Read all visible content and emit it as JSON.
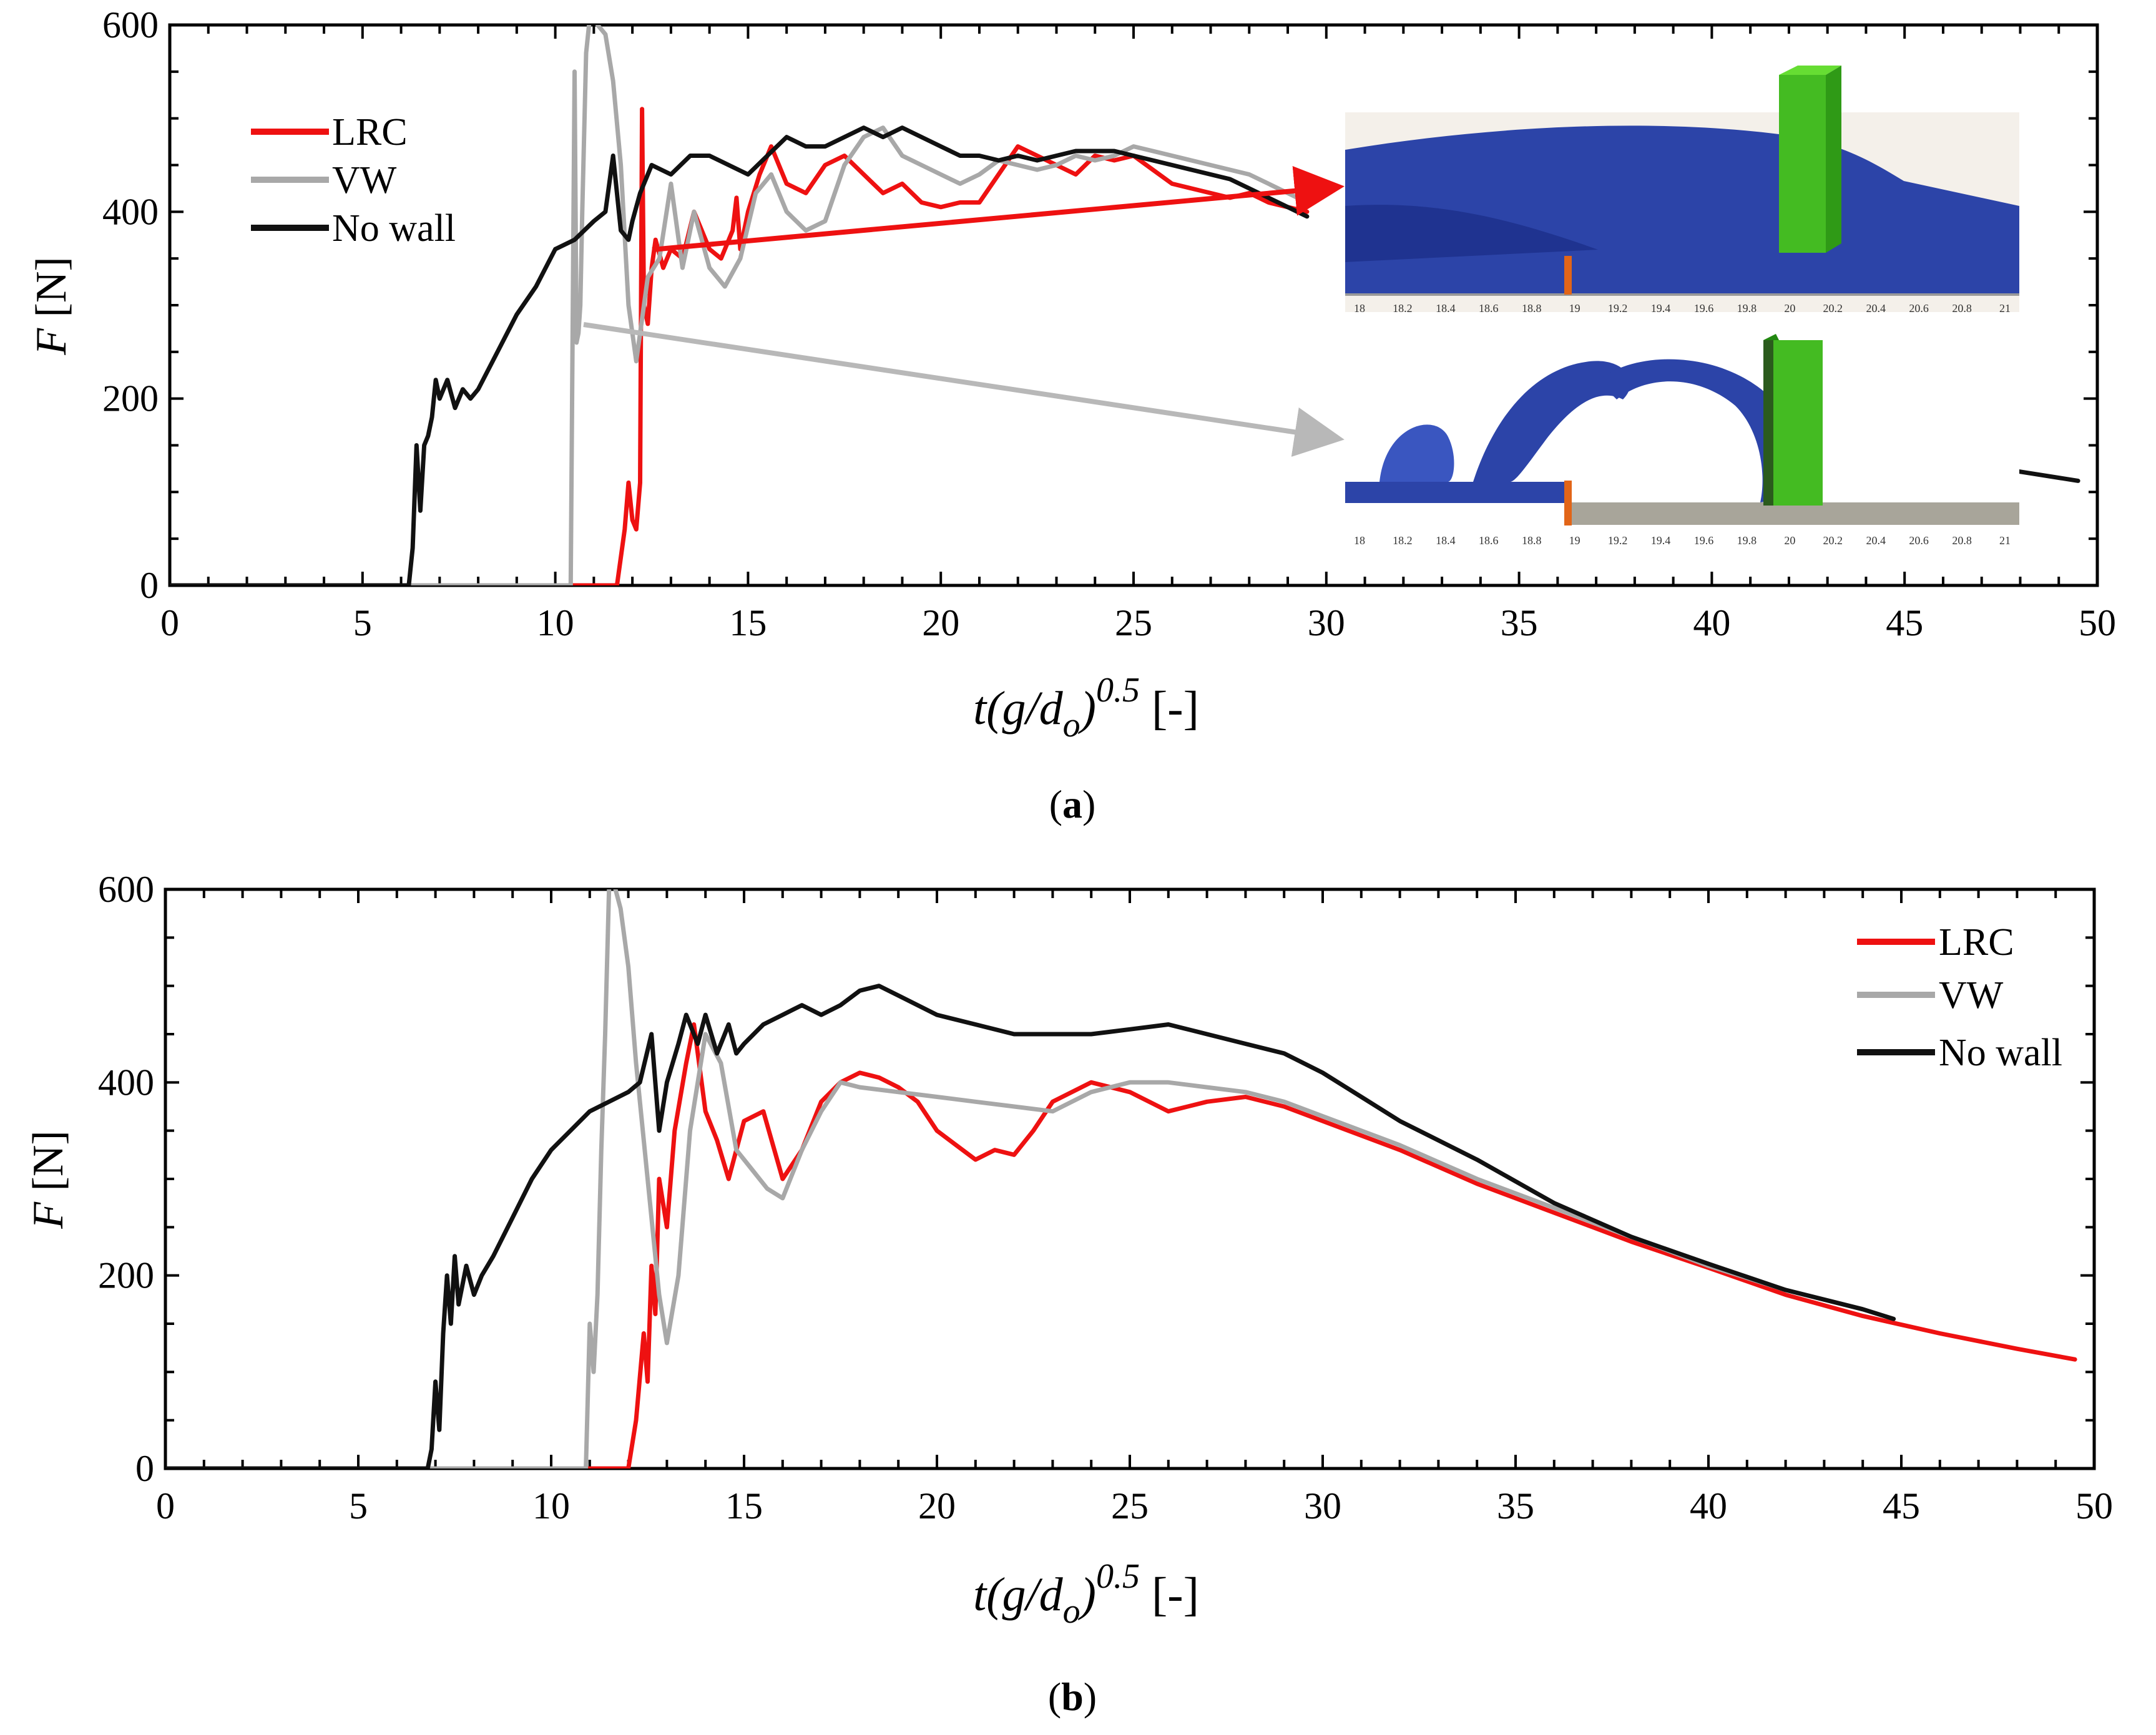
{
  "figure": {
    "captions": [
      "(a)",
      "(b)"
    ],
    "caption_letters": [
      "a",
      "b"
    ]
  },
  "colors": {
    "LRC": "#ee1111",
    "VW": "#a8a8a8",
    "No wall": "#111111",
    "arrow_LRC": "#ee1111",
    "arrow_VW": "#b8b8b8",
    "wave": "#2c44a8",
    "wall": "#44bb22"
  },
  "chart_data": [
    {
      "panel": "a",
      "type": "line",
      "title": "",
      "xlabel": "t(g/d_o)^0.5 [-]",
      "xlabel_parts": {
        "main": "t(g/d",
        "sub": "o",
        "close": ")",
        "sup": "0.5",
        "unit": " [-]"
      },
      "ylabel": "F [N]",
      "ylabel_parts": {
        "var": "F",
        "unit": " [N]"
      },
      "xlim": [
        0,
        50
      ],
      "ylim": [
        0,
        600
      ],
      "xticks": [
        0,
        5,
        10,
        15,
        20,
        25,
        30,
        35,
        40,
        45,
        50
      ],
      "yticks": [
        0,
        200,
        400,
        600
      ],
      "legend": {
        "placement": "top-left",
        "entries": [
          "LRC",
          "VW",
          "No wall"
        ]
      },
      "series": [
        {
          "name": "LRC",
          "x": [
            0,
            10,
            11.6,
            11.8,
            11.9,
            12.0,
            12.1,
            12.2,
            12.25,
            12.3,
            12.4,
            12.5,
            12.6,
            12.8,
            13.0,
            13.3,
            13.6,
            14.0,
            14.3,
            14.6,
            14.7,
            14.8,
            15.0,
            15.3,
            15.6,
            16.0,
            16.5,
            17.0,
            17.5,
            18.0,
            18.5,
            19.0,
            19.5,
            20.0,
            20.5,
            21.0,
            21.5,
            22.0,
            22.5,
            23.0,
            23.5,
            24.0,
            24.5,
            25.0,
            25.5,
            26.0,
            26.5,
            27.0,
            27.5,
            28.0,
            28.5,
            29.0,
            29.5
          ],
          "y": [
            0,
            0,
            0,
            60,
            110,
            70,
            60,
            110,
            510,
            300,
            280,
            340,
            370,
            340,
            360,
            350,
            400,
            360,
            350,
            380,
            415,
            360,
            400,
            440,
            470,
            430,
            420,
            450,
            460,
            440,
            420,
            430,
            410,
            405,
            410,
            410,
            440,
            470,
            460,
            450,
            440,
            460,
            455,
            460,
            445,
            430,
            425,
            420,
            415,
            420,
            410,
            405,
            400
          ]
        },
        {
          "name": "VW",
          "x": [
            0,
            10.4,
            10.5,
            10.55,
            10.6,
            10.65,
            10.7,
            10.8,
            10.9,
            11.0,
            11.1,
            11.3,
            11.5,
            11.7,
            11.9,
            12.1,
            12.4,
            12.7,
            13.0,
            13.3,
            13.6,
            14.0,
            14.4,
            14.8,
            15.2,
            15.6,
            16.0,
            16.5,
            17.0,
            17.5,
            18.0,
            18.5,
            19.0,
            19.5,
            20.0,
            20.5,
            21.0,
            21.5,
            22.0,
            22.5,
            23.0,
            23.5,
            24.0,
            24.5,
            25.0,
            25.5,
            26.0,
            26.5,
            27.0,
            27.5,
            28.0,
            28.5,
            29.0,
            29.5
          ],
          "y": [
            0,
            0,
            550,
            260,
            270,
            300,
            400,
            570,
            610,
            610,
            600,
            590,
            540,
            450,
            300,
            240,
            330,
            350,
            430,
            340,
            400,
            340,
            320,
            350,
            420,
            440,
            400,
            380,
            390,
            450,
            480,
            490,
            460,
            450,
            440,
            430,
            440,
            455,
            450,
            445,
            450,
            460,
            455,
            460,
            470,
            465,
            460,
            455,
            450,
            445,
            440,
            430,
            420,
            410
          ]
        },
        {
          "name": "No wall",
          "x": [
            0,
            6.2,
            6.3,
            6.4,
            6.5,
            6.6,
            6.7,
            6.8,
            6.9,
            7.0,
            7.2,
            7.4,
            7.6,
            7.8,
            8.0,
            8.5,
            9.0,
            9.5,
            10.0,
            10.5,
            11.0,
            11.3,
            11.5,
            11.7,
            11.9,
            12.0,
            12.2,
            12.5,
            13.0,
            13.5,
            14.0,
            14.5,
            15.0,
            15.5,
            16.0,
            16.5,
            17.0,
            17.5,
            18.0,
            18.5,
            19.0,
            19.5,
            20.0,
            20.5,
            21.0,
            21.5,
            22.0,
            22.5,
            23.0,
            23.5,
            24.0,
            24.5,
            25.0,
            25.5,
            26.0,
            26.5,
            27.0,
            27.5,
            28.0,
            28.5,
            29.0,
            29.5
          ],
          "y": [
            0,
            0,
            40,
            150,
            80,
            150,
            160,
            180,
            220,
            200,
            220,
            190,
            210,
            200,
            210,
            250,
            290,
            320,
            360,
            370,
            390,
            400,
            460,
            380,
            370,
            390,
            420,
            450,
            440,
            460,
            460,
            450,
            440,
            460,
            480,
            470,
            470,
            480,
            490,
            480,
            490,
            480,
            470,
            460,
            460,
            455,
            460,
            455,
            460,
            465,
            465,
            465,
            460,
            455,
            450,
            445,
            440,
            435,
            425,
            415,
            405,
            395
          ]
        },
        {
          "name": "No wall (segment)",
          "x": [
            47.5,
            49.5
          ],
          "y": [
            125,
            112
          ]
        }
      ],
      "insets": [
        {
          "xticks": [
            "18",
            "18.2",
            "18.4",
            "18.6",
            "18.8",
            "19",
            "19.2",
            "19.4",
            "19.6",
            "19.8",
            "20",
            "20.2",
            "20.4",
            "20.6",
            "20.8",
            "21"
          ]
        },
        {
          "xticks": [
            "18",
            "18.2",
            "18.4",
            "18.6",
            "18.8",
            "19",
            "19.2",
            "19.4",
            "19.6",
            "19.8",
            "20",
            "20.2",
            "20.4",
            "20.6",
            "20.8",
            "21"
          ]
        }
      ]
    },
    {
      "panel": "b",
      "type": "line",
      "title": "",
      "xlabel": "t(g/d_o)^0.5 [-]",
      "xlabel_parts": {
        "main": "t(g/d",
        "sub": "o",
        "close": ")",
        "sup": "0.5",
        "unit": " [-]"
      },
      "ylabel": "F [N]",
      "ylabel_parts": {
        "var": "F",
        "unit": " [N]"
      },
      "xlim": [
        0,
        50
      ],
      "ylim": [
        0,
        600
      ],
      "xticks": [
        0,
        5,
        10,
        15,
        20,
        25,
        30,
        35,
        40,
        45,
        50
      ],
      "yticks": [
        0,
        200,
        400,
        600
      ],
      "legend": {
        "placement": "top-right",
        "entries": [
          "LRC",
          "VW",
          "No wall"
        ]
      },
      "series": [
        {
          "name": "LRC",
          "x": [
            0,
            12.0,
            12.2,
            12.4,
            12.5,
            12.6,
            12.7,
            12.8,
            13.0,
            13.2,
            13.5,
            13.7,
            14.0,
            14.3,
            14.6,
            15.0,
            15.5,
            16.0,
            16.5,
            17.0,
            17.5,
            18.0,
            18.5,
            19.0,
            19.5,
            20.0,
            20.5,
            21.0,
            21.5,
            22.0,
            22.5,
            23.0,
            23.5,
            24.0,
            25.0,
            26.0,
            27.0,
            28.0,
            29.0,
            30.0,
            32.0,
            34.0,
            36.0,
            38.0,
            40.0,
            42.0,
            44.0,
            46.0,
            48.0,
            49.5
          ],
          "y": [
            0,
            0,
            50,
            140,
            90,
            210,
            160,
            300,
            250,
            350,
            420,
            460,
            370,
            340,
            300,
            360,
            370,
            300,
            330,
            380,
            400,
            410,
            405,
            395,
            380,
            350,
            335,
            320,
            330,
            325,
            350,
            380,
            390,
            400,
            390,
            370,
            380,
            385,
            375,
            360,
            330,
            295,
            265,
            235,
            208,
            180,
            158,
            140,
            124,
            113
          ]
        },
        {
          "name": "VW",
          "x": [
            0,
            10.9,
            11.0,
            11.1,
            11.2,
            11.3,
            11.4,
            11.5,
            11.6,
            11.8,
            12.0,
            12.2,
            12.5,
            12.8,
            13.0,
            13.3,
            13.6,
            14.0,
            14.4,
            14.8,
            15.2,
            15.6,
            16.0,
            16.5,
            17.0,
            17.5,
            18.0,
            19.0,
            20.0,
            21.0,
            22.0,
            23.0,
            24.0,
            25.0,
            26.0,
            27.0,
            28.0,
            29.0,
            30.0,
            32.0,
            34.0,
            36.0,
            38.0,
            40.0,
            42.0,
            44.0,
            44.8
          ],
          "y": [
            0,
            0,
            150,
            100,
            180,
            330,
            450,
            600,
            610,
            580,
            520,
            420,
            300,
            180,
            130,
            200,
            350,
            450,
            420,
            330,
            310,
            290,
            280,
            330,
            370,
            400,
            395,
            390,
            385,
            380,
            375,
            370,
            390,
            400,
            400,
            395,
            390,
            380,
            365,
            335,
            300,
            270,
            240,
            210,
            185,
            165,
            155
          ]
        },
        {
          "name": "No wall",
          "x": [
            0,
            6.8,
            6.9,
            7.0,
            7.1,
            7.2,
            7.3,
            7.4,
            7.5,
            7.6,
            7.8,
            8.0,
            8.2,
            8.5,
            9.0,
            9.5,
            10.0,
            10.5,
            11.0,
            11.5,
            12.0,
            12.3,
            12.6,
            12.8,
            13.0,
            13.3,
            13.5,
            13.8,
            14.0,
            14.3,
            14.6,
            14.8,
            15.0,
            15.5,
            16.0,
            16.5,
            17.0,
            17.5,
            18.0,
            18.5,
            19.0,
            19.5,
            20.0,
            21.0,
            22.0,
            23.0,
            24.0,
            25.0,
            26.0,
            27.0,
            28.0,
            29.0,
            30.0,
            31.0,
            32.0,
            34.0,
            36.0,
            38.0,
            40.0,
            42.0,
            44.0,
            44.8
          ],
          "y": [
            0,
            0,
            20,
            90,
            40,
            140,
            200,
            150,
            220,
            170,
            210,
            180,
            200,
            220,
            260,
            300,
            330,
            350,
            370,
            380,
            390,
            400,
            450,
            350,
            400,
            440,
            470,
            440,
            470,
            430,
            460,
            430,
            440,
            460,
            470,
            480,
            470,
            480,
            495,
            500,
            490,
            480,
            470,
            460,
            450,
            450,
            450,
            455,
            460,
            450,
            440,
            430,
            410,
            385,
            360,
            320,
            275,
            240,
            212,
            185,
            165,
            155
          ]
        }
      ]
    }
  ]
}
